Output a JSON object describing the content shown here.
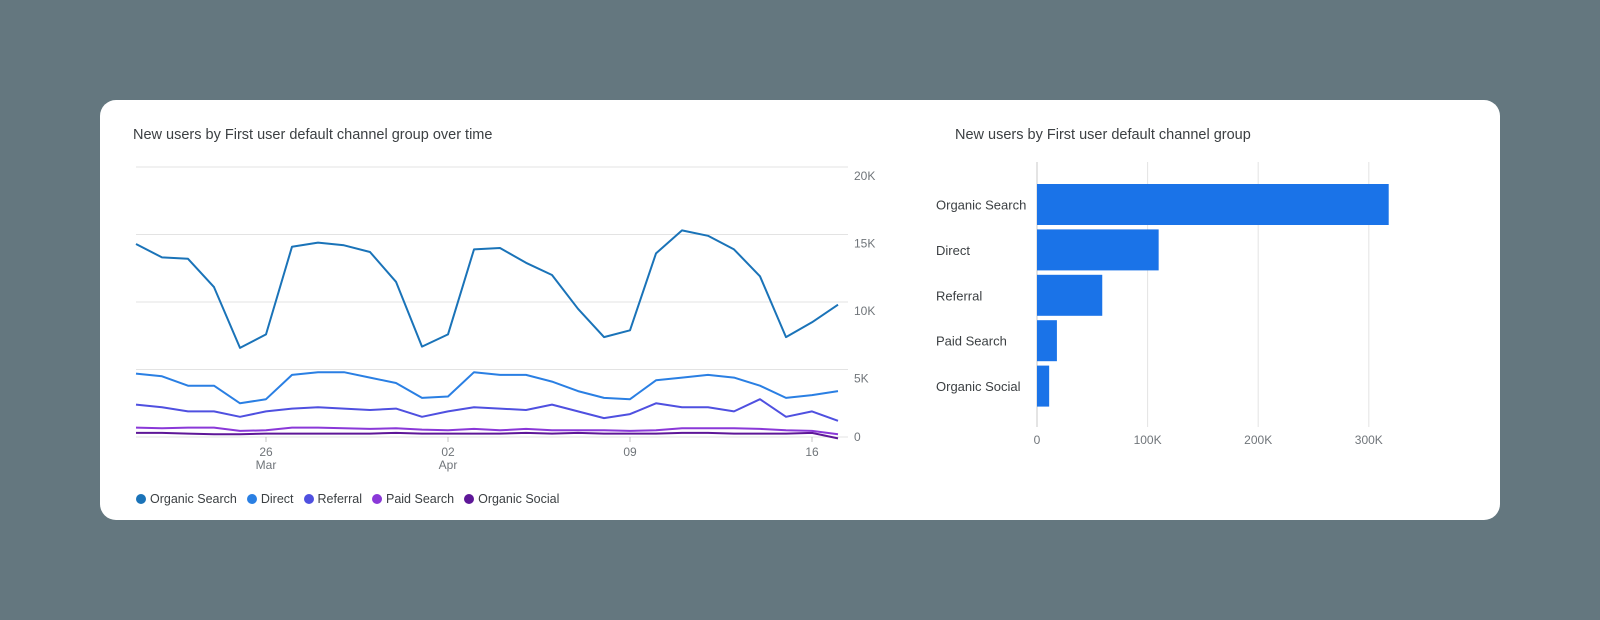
{
  "line_chart": {
    "title": "New users by First user default channel group over time"
  },
  "bar_chart": {
    "title": "New users by First user default channel group"
  },
  "chart_data": [
    {
      "type": "line",
      "title": "New users by First user default channel group over time",
      "x_tick_labels": [
        {
          "day": "26",
          "month": "Mar",
          "index": 5
        },
        {
          "day": "02",
          "month": "Apr",
          "index": 12
        },
        {
          "day": "09",
          "month": "",
          "index": 19
        },
        {
          "day": "16",
          "month": "",
          "index": 26
        }
      ],
      "y_ticks": [
        "0",
        "5K",
        "10K",
        "15K",
        "20K"
      ],
      "ylim": [
        0,
        20000
      ],
      "grid": true,
      "legend_position": "bottom-left",
      "series": [
        {
          "name": "Organic Search",
          "color": "#1a73b8",
          "values": [
            14300,
            13300,
            13200,
            11100,
            6600,
            7600,
            14100,
            14400,
            14200,
            13700,
            11500,
            6700,
            7600,
            13900,
            14000,
            12900,
            12000,
            9500,
            7400,
            7900,
            13600,
            15300,
            14900,
            13900,
            11900,
            7400,
            8500,
            9800
          ]
        },
        {
          "name": "Direct",
          "color": "#2a7fe3",
          "values": [
            4700,
            4500,
            3800,
            3800,
            2500,
            2800,
            4600,
            4800,
            4800,
            4400,
            4000,
            2900,
            3000,
            4800,
            4600,
            4600,
            4100,
            3400,
            2900,
            2800,
            4200,
            4400,
            4600,
            4400,
            3800,
            2900,
            3100,
            3400
          ]
        },
        {
          "name": "Referral",
          "color": "#4f50e0",
          "values": [
            2400,
            2200,
            1900,
            1900,
            1500,
            1900,
            2100,
            2200,
            2100,
            2000,
            2100,
            1500,
            1900,
            2200,
            2100,
            2000,
            2400,
            1900,
            1400,
            1700,
            2500,
            2200,
            2200,
            1900,
            2800,
            1500,
            1900,
            1200
          ]
        },
        {
          "name": "Paid Search",
          "color": "#8a38d8",
          "values": [
            700,
            650,
            700,
            700,
            450,
            500,
            700,
            700,
            650,
            600,
            650,
            550,
            500,
            600,
            500,
            600,
            500,
            500,
            500,
            450,
            500,
            650,
            650,
            650,
            600,
            500,
            450,
            200
          ]
        },
        {
          "name": "Organic Social",
          "color": "#5e1798",
          "values": [
            300,
            300,
            250,
            200,
            200,
            250,
            250,
            250,
            250,
            250,
            300,
            250,
            250,
            250,
            250,
            300,
            250,
            300,
            250,
            250,
            250,
            300,
            300,
            250,
            250,
            250,
            300,
            -100
          ]
        }
      ]
    },
    {
      "type": "bar",
      "orientation": "horizontal",
      "title": "New users by First user default channel group",
      "categories": [
        "Organic Search",
        "Direct",
        "Referral",
        "Paid Search",
        "Organic Social"
      ],
      "values": [
        318000,
        110000,
        59000,
        18000,
        11000
      ],
      "x_ticks": [
        "0",
        "100K",
        "200K",
        "300K"
      ],
      "xlim": [
        0,
        320000
      ],
      "color": "#1a73e8",
      "grid": true
    }
  ]
}
